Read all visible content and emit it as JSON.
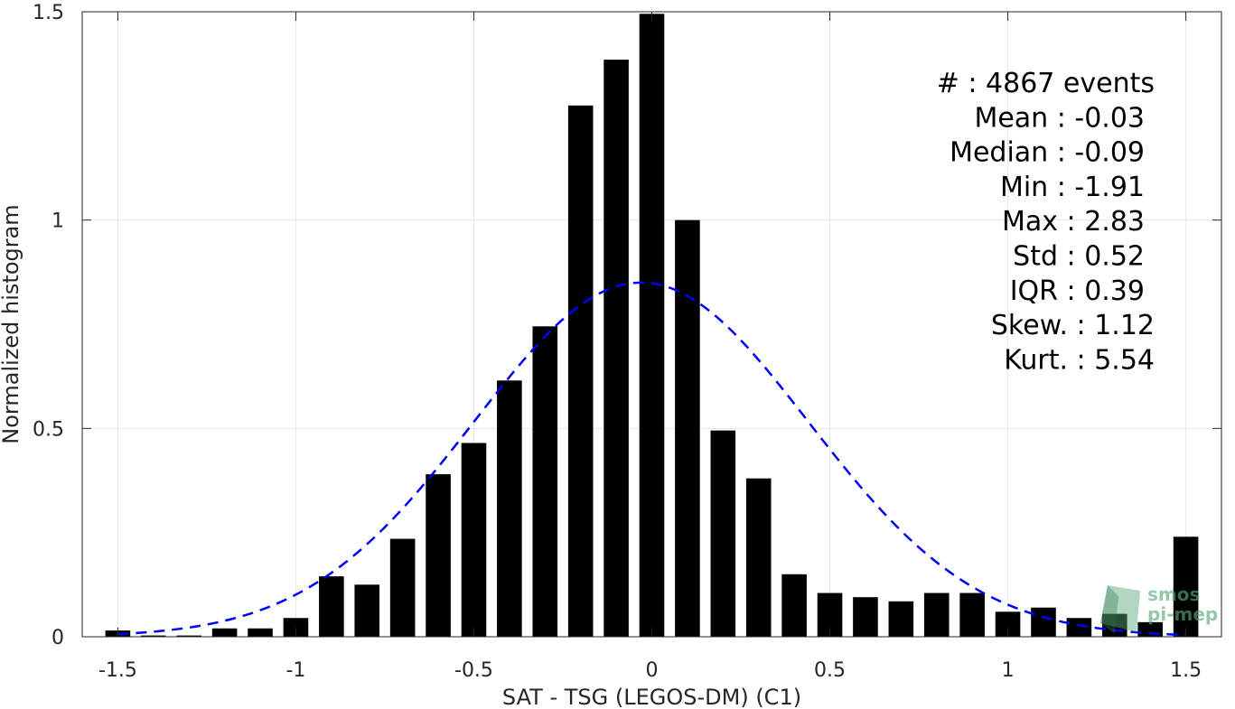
{
  "chart_data": {
    "type": "bar",
    "xlabel": "SAT - TSG (LEGOS-DM) (C1)",
    "ylabel": "Normalized histogram",
    "xlim": [
      -1.6,
      1.6
    ],
    "ylim": [
      0,
      1.5
    ],
    "xticks": [
      -1.5,
      -1,
      -0.5,
      0,
      0.5,
      1,
      1.5
    ],
    "xtick_labels": [
      "-1.5",
      "-1",
      "-0.5",
      "0",
      "0.5",
      "1",
      "1.5"
    ],
    "yticks": [
      0,
      0.5,
      1,
      1.5
    ],
    "ytick_labels": [
      "0",
      "0.5",
      "1",
      "1.5"
    ],
    "grid": true,
    "bar_color": "#000000",
    "bin_width": 0.1,
    "bars": [
      {
        "x": -1.5,
        "y": 0.015
      },
      {
        "x": -1.4,
        "y": 0.003
      },
      {
        "x": -1.3,
        "y": 0.003
      },
      {
        "x": -1.2,
        "y": 0.02
      },
      {
        "x": -1.1,
        "y": 0.02
      },
      {
        "x": -1.0,
        "y": 0.045
      },
      {
        "x": -0.9,
        "y": 0.145
      },
      {
        "x": -0.8,
        "y": 0.125
      },
      {
        "x": -0.7,
        "y": 0.235
      },
      {
        "x": -0.6,
        "y": 0.39
      },
      {
        "x": -0.5,
        "y": 0.465
      },
      {
        "x": -0.4,
        "y": 0.615
      },
      {
        "x": -0.3,
        "y": 0.745
      },
      {
        "x": -0.2,
        "y": 1.275
      },
      {
        "x": -0.1,
        "y": 1.385
      },
      {
        "x": 0.0,
        "y": 1.495
      },
      {
        "x": 0.1,
        "y": 1.0
      },
      {
        "x": 0.2,
        "y": 0.495
      },
      {
        "x": 0.3,
        "y": 0.38
      },
      {
        "x": 0.4,
        "y": 0.15
      },
      {
        "x": 0.5,
        "y": 0.105
      },
      {
        "x": 0.6,
        "y": 0.095
      },
      {
        "x": 0.7,
        "y": 0.085
      },
      {
        "x": 0.8,
        "y": 0.105
      },
      {
        "x": 0.9,
        "y": 0.105
      },
      {
        "x": 1.0,
        "y": 0.06
      },
      {
        "x": 1.1,
        "y": 0.07
      },
      {
        "x": 1.2,
        "y": 0.045
      },
      {
        "x": 1.3,
        "y": 0.055
      },
      {
        "x": 1.4,
        "y": 0.035
      },
      {
        "x": 1.5,
        "y": 0.24
      }
    ],
    "gaussian_fit": {
      "mean": -0.03,
      "std": 0.47,
      "peak": 0.85,
      "x_range": [
        -1.5,
        1.5
      ],
      "color": "#0000ff",
      "style": "dashed"
    },
    "stats": [
      {
        "text": "#  : 4867 events"
      },
      {
        "text": "Mean : -0.03"
      },
      {
        "text": "Median : -0.09"
      },
      {
        "text": "Min : -1.91"
      },
      {
        "text": "Max : 2.83"
      },
      {
        "text": "Std : 0.52"
      },
      {
        "text": "IQR : 0.39"
      },
      {
        "text": "Skew. : 1.12"
      },
      {
        "text": "Kurt. : 5.54"
      }
    ],
    "stats_placement": "top-right"
  },
  "logo": {
    "line1": "smos",
    "line2": "pi-mep",
    "color": "#5aa77a"
  }
}
